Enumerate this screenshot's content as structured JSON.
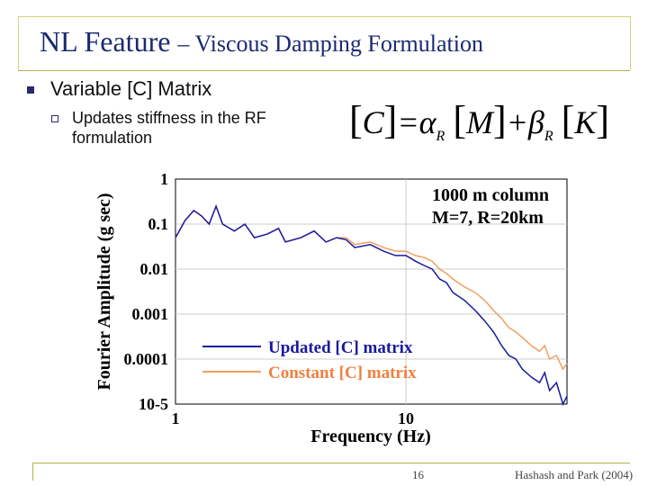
{
  "slide": {
    "title_main": "NL Feature",
    "title_sub": "– Viscous Damping Formulation",
    "bullet1": "Variable [C] Matrix",
    "bullet2": "Updates stiffness in the RF formulation",
    "equation": {
      "c": "C",
      "eq": "=",
      "alpha": "α",
      "r1": "R",
      "m": "M",
      "plus": "+",
      "beta": "β",
      "r2": "R",
      "k": "K"
    },
    "page_number": "16",
    "credit": "Hashash and Park (2004)"
  },
  "chart_data": {
    "type": "line",
    "xlabel": "Frequency (Hz)",
    "ylabel": "Fourier Amplitude (g sec)",
    "x_scale": "log",
    "y_scale": "log",
    "xlim": [
      1,
      50
    ],
    "ylim": [
      1e-05,
      1
    ],
    "x_ticks": [
      "1",
      "10"
    ],
    "y_ticks": [
      "1",
      "0.1",
      "0.01",
      "0.001",
      "0.0001",
      "10-5"
    ],
    "annotation_line1": "1000 m column",
    "annotation_line2": "M=7, R=20km",
    "legend_placement": "bottom-left",
    "series": [
      {
        "name": "Updated [C] matrix",
        "color": "#1a1aa0",
        "x": [
          1,
          1.1,
          1.2,
          1.3,
          1.4,
          1.5,
          1.6,
          1.8,
          2,
          2.2,
          2.5,
          2.8,
          3,
          3.5,
          4,
          4.5,
          5,
          5.5,
          6,
          7,
          8,
          9,
          10,
          11,
          12,
          13,
          14,
          15,
          16,
          18,
          20,
          22,
          24,
          26,
          28,
          30,
          32,
          35,
          38,
          40,
          42,
          45,
          48,
          50
        ],
        "y": [
          0.05,
          0.12,
          0.2,
          0.15,
          0.1,
          0.25,
          0.1,
          0.07,
          0.1,
          0.05,
          0.06,
          0.08,
          0.04,
          0.05,
          0.07,
          0.04,
          0.05,
          0.045,
          0.03,
          0.035,
          0.025,
          0.02,
          0.02,
          0.015,
          0.012,
          0.01,
          0.006,
          0.005,
          0.003,
          0.002,
          0.0012,
          0.0007,
          0.0004,
          0.0002,
          0.00012,
          0.0001,
          6e-05,
          4e-05,
          3e-05,
          5e-05,
          2e-05,
          3e-05,
          1e-05,
          1.5e-05
        ]
      },
      {
        "name": "Constant [C] matrix",
        "color": "#f0a060",
        "x": [
          1,
          1.1,
          1.2,
          1.3,
          1.4,
          1.5,
          1.6,
          1.8,
          2,
          2.2,
          2.5,
          2.8,
          3,
          3.5,
          4,
          4.5,
          5,
          5.5,
          6,
          7,
          8,
          9,
          10,
          11,
          12,
          13,
          14,
          15,
          16,
          18,
          20,
          22,
          24,
          26,
          28,
          30,
          32,
          35,
          38,
          40,
          42,
          45,
          48,
          50
        ],
        "y": [
          0.05,
          0.12,
          0.2,
          0.15,
          0.1,
          0.25,
          0.1,
          0.07,
          0.1,
          0.05,
          0.06,
          0.08,
          0.04,
          0.05,
          0.07,
          0.04,
          0.05,
          0.05,
          0.035,
          0.04,
          0.03,
          0.025,
          0.025,
          0.02,
          0.018,
          0.015,
          0.01,
          0.008,
          0.006,
          0.004,
          0.003,
          0.002,
          0.0012,
          0.0008,
          0.0005,
          0.0004,
          0.0003,
          0.0002,
          0.00015,
          0.0002,
          0.0001,
          0.00012,
          6e-05,
          8e-05
        ]
      }
    ]
  }
}
